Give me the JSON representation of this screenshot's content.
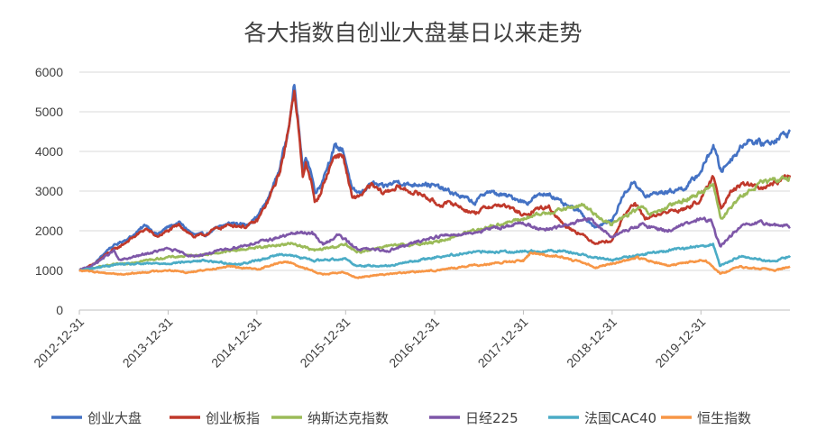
{
  "chart_data": {
    "type": "line",
    "title": "各大指数自创业大盘基日以来走势",
    "xlabel": "",
    "ylabel": "",
    "ylim": [
      0,
      6000
    ],
    "yticks": [
      0,
      1000,
      2000,
      3000,
      4000,
      5000,
      6000
    ],
    "x_range": [
      "2012-12-31",
      "2020-12-31"
    ],
    "xticks": [
      "2012-12-31",
      "2013-12-31",
      "2014-12-31",
      "2015-12-31",
      "2016-12-31",
      "2017-12-31",
      "2018-12-31",
      "2019-12-31"
    ],
    "grid": "horizontal",
    "legend_position": "bottom",
    "series": [
      {
        "name": "创业大盘",
        "color": "#4472C4",
        "points": [
          [
            "2012-12-31",
            1000
          ],
          [
            "2013-03-01",
            1150
          ],
          [
            "2013-05-01",
            1550
          ],
          [
            "2013-06-15",
            1700
          ],
          [
            "2013-08-01",
            1850
          ],
          [
            "2013-10-01",
            2150
          ],
          [
            "2013-11-15",
            1900
          ],
          [
            "2014-01-01",
            2100
          ],
          [
            "2014-02-15",
            2200
          ],
          [
            "2014-04-15",
            1900
          ],
          [
            "2014-06-01",
            1900
          ],
          [
            "2014-07-15",
            2050
          ],
          [
            "2014-09-15",
            2200
          ],
          [
            "2014-11-15",
            2150
          ],
          [
            "2015-01-01",
            2350
          ],
          [
            "2015-02-15",
            2800
          ],
          [
            "2015-03-31",
            3500
          ],
          [
            "2015-05-01",
            4300
          ],
          [
            "2015-06-03",
            5650
          ],
          [
            "2015-06-20",
            4700
          ],
          [
            "2015-07-08",
            3500
          ],
          [
            "2015-07-20",
            3900
          ],
          [
            "2015-08-10",
            3500
          ],
          [
            "2015-08-26",
            3000
          ],
          [
            "2015-09-15",
            3100
          ],
          [
            "2015-10-15",
            3600
          ],
          [
            "2015-11-15",
            4100
          ],
          [
            "2015-12-20",
            4050
          ],
          [
            "2016-01-10",
            3500
          ],
          [
            "2016-01-28",
            3000
          ],
          [
            "2016-03-01",
            2950
          ],
          [
            "2016-04-15",
            3200
          ],
          [
            "2016-06-01",
            3100
          ],
          [
            "2016-08-01",
            3250
          ],
          [
            "2016-09-15",
            3150
          ],
          [
            "2016-11-15",
            3200
          ],
          [
            "2017-01-15",
            3100
          ],
          [
            "2017-03-15",
            2950
          ],
          [
            "2017-05-15",
            2800
          ],
          [
            "2017-06-15",
            2700
          ],
          [
            "2017-08-01",
            3000
          ],
          [
            "2017-10-01",
            2900
          ],
          [
            "2017-11-15",
            2850
          ],
          [
            "2018-01-15",
            2700
          ],
          [
            "2018-02-15",
            2850
          ],
          [
            "2018-04-15",
            2950
          ],
          [
            "2018-06-15",
            2650
          ],
          [
            "2018-08-15",
            2500
          ],
          [
            "2018-10-20",
            2100
          ],
          [
            "2018-12-31",
            2250
          ],
          [
            "2019-02-15",
            2900
          ],
          [
            "2019-04-01",
            3250
          ],
          [
            "2019-05-15",
            2850
          ],
          [
            "2019-07-01",
            2950
          ],
          [
            "2019-09-01",
            3000
          ],
          [
            "2019-11-01",
            3100
          ],
          [
            "2019-12-31",
            3500
          ],
          [
            "2020-02-20",
            4150
          ],
          [
            "2020-03-23",
            3500
          ],
          [
            "2020-05-01",
            3800
          ],
          [
            "2020-07-10",
            4300
          ],
          [
            "2020-09-01",
            4200
          ],
          [
            "2020-10-15",
            4250
          ],
          [
            "2020-12-31",
            4500
          ]
        ]
      },
      {
        "name": "创业板指",
        "color": "#C0392B",
        "points": [
          [
            "2012-12-31",
            1000
          ],
          [
            "2013-03-01",
            1150
          ],
          [
            "2013-05-01",
            1450
          ],
          [
            "2013-06-15",
            1600
          ],
          [
            "2013-08-01",
            1800
          ],
          [
            "2013-10-01",
            2050
          ],
          [
            "2013-11-15",
            1850
          ],
          [
            "2014-01-01",
            2000
          ],
          [
            "2014-02-15",
            2150
          ],
          [
            "2014-04-15",
            1850
          ],
          [
            "2014-06-01",
            1900
          ],
          [
            "2014-07-15",
            2050
          ],
          [
            "2014-09-15",
            2150
          ],
          [
            "2014-11-15",
            2100
          ],
          [
            "2015-01-01",
            2250
          ],
          [
            "2015-02-15",
            2750
          ],
          [
            "2015-03-31",
            3400
          ],
          [
            "2015-05-01",
            4200
          ],
          [
            "2015-06-03",
            5600
          ],
          [
            "2015-06-20",
            4600
          ],
          [
            "2015-07-08",
            3300
          ],
          [
            "2015-07-20",
            3700
          ],
          [
            "2015-08-10",
            3300
          ],
          [
            "2015-08-26",
            2700
          ],
          [
            "2015-09-15",
            2900
          ],
          [
            "2015-10-15",
            3400
          ],
          [
            "2015-11-15",
            3900
          ],
          [
            "2015-12-20",
            3900
          ],
          [
            "2016-01-10",
            3300
          ],
          [
            "2016-01-28",
            2800
          ],
          [
            "2016-03-01",
            2900
          ],
          [
            "2016-04-15",
            3150
          ],
          [
            "2016-06-01",
            2950
          ],
          [
            "2016-08-01",
            3100
          ],
          [
            "2016-09-15",
            3000
          ],
          [
            "2016-11-15",
            2900
          ],
          [
            "2017-01-15",
            2650
          ],
          [
            "2017-03-15",
            2700
          ],
          [
            "2017-05-15",
            2500
          ],
          [
            "2017-06-15",
            2450
          ],
          [
            "2017-08-01",
            2600
          ],
          [
            "2017-10-01",
            2650
          ],
          [
            "2017-11-15",
            2550
          ],
          [
            "2018-01-15",
            2350
          ],
          [
            "2018-02-15",
            2550
          ],
          [
            "2018-04-15",
            2600
          ],
          [
            "2018-06-15",
            2150
          ],
          [
            "2018-08-15",
            1950
          ],
          [
            "2018-10-20",
            1700
          ],
          [
            "2018-12-31",
            1750
          ],
          [
            "2019-02-15",
            2350
          ],
          [
            "2019-04-01",
            2700
          ],
          [
            "2019-05-15",
            2300
          ],
          [
            "2019-07-01",
            2400
          ],
          [
            "2019-09-01",
            2500
          ],
          [
            "2019-11-01",
            2550
          ],
          [
            "2019-12-31",
            2800
          ],
          [
            "2020-02-20",
            3350
          ],
          [
            "2020-03-23",
            2600
          ],
          [
            "2020-05-01",
            3000
          ],
          [
            "2020-07-10",
            3200
          ],
          [
            "2020-09-01",
            3050
          ],
          [
            "2020-10-15",
            3150
          ],
          [
            "2020-12-31",
            3400
          ]
        ]
      },
      {
        "name": "纳斯达克指数",
        "color": "#9BBB59",
        "points": [
          [
            "2012-12-31",
            1000
          ],
          [
            "2013-06-01",
            1150
          ],
          [
            "2013-12-31",
            1330
          ],
          [
            "2014-06-01",
            1400
          ],
          [
            "2014-12-31",
            1580
          ],
          [
            "2015-06-01",
            1680
          ],
          [
            "2015-08-25",
            1500
          ],
          [
            "2015-12-31",
            1650
          ],
          [
            "2016-02-15",
            1450
          ],
          [
            "2016-06-01",
            1600
          ],
          [
            "2016-12-31",
            1700
          ],
          [
            "2017-06-01",
            2000
          ],
          [
            "2017-12-31",
            2300
          ],
          [
            "2018-03-01",
            2400
          ],
          [
            "2018-08-31",
            2650
          ],
          [
            "2018-12-24",
            2150
          ],
          [
            "2019-04-30",
            2600
          ],
          [
            "2019-06-03",
            2400
          ],
          [
            "2019-12-31",
            2950
          ],
          [
            "2020-02-19",
            3200
          ],
          [
            "2020-03-23",
            2300
          ],
          [
            "2020-06-01",
            2800
          ],
          [
            "2020-09-01",
            3200
          ],
          [
            "2020-12-31",
            3350
          ]
        ]
      },
      {
        "name": "日经225",
        "color": "#7E57A8",
        "points": [
          [
            "2012-12-31",
            1000
          ],
          [
            "2013-03-01",
            1150
          ],
          [
            "2013-05-22",
            1500
          ],
          [
            "2013-06-13",
            1250
          ],
          [
            "2013-12-31",
            1550
          ],
          [
            "2014-04-15",
            1350
          ],
          [
            "2014-12-31",
            1700
          ],
          [
            "2015-06-15",
            1950
          ],
          [
            "2015-08-15",
            1950
          ],
          [
            "2015-09-29",
            1650
          ],
          [
            "2015-12-01",
            1900
          ],
          [
            "2016-02-15",
            1550
          ],
          [
            "2016-06-24",
            1500
          ],
          [
            "2016-12-31",
            1850
          ],
          [
            "2017-06-01",
            1950
          ],
          [
            "2017-12-31",
            2200
          ],
          [
            "2018-03-25",
            2000
          ],
          [
            "2018-10-01",
            2300
          ],
          [
            "2018-12-25",
            1850
          ],
          [
            "2019-04-30",
            2150
          ],
          [
            "2019-08-15",
            2000
          ],
          [
            "2019-12-31",
            2300
          ],
          [
            "2020-02-10",
            2250
          ],
          [
            "2020-03-19",
            1600
          ],
          [
            "2020-06-08",
            2100
          ],
          [
            "2020-09-01",
            2200
          ],
          [
            "2020-12-31",
            2100
          ]
        ]
      },
      {
        "name": "法国CAC40",
        "color": "#4BACC6",
        "points": [
          [
            "2012-12-31",
            1000
          ],
          [
            "2013-06-01",
            1150
          ],
          [
            "2013-12-31",
            1180
          ],
          [
            "2014-06-01",
            1250
          ],
          [
            "2014-10-15",
            1150
          ],
          [
            "2014-12-31",
            1250
          ],
          [
            "2015-04-15",
            1420
          ],
          [
            "2015-08-24",
            1250
          ],
          [
            "2015-12-31",
            1300
          ],
          [
            "2016-02-11",
            1120
          ],
          [
            "2016-06-27",
            1120
          ],
          [
            "2016-12-31",
            1330
          ],
          [
            "2017-06-01",
            1460
          ],
          [
            "2017-12-31",
            1480
          ],
          [
            "2018-06-01",
            1500
          ],
          [
            "2018-12-27",
            1260
          ],
          [
            "2019-06-01",
            1430
          ],
          [
            "2019-12-31",
            1620
          ],
          [
            "2020-02-19",
            1660
          ],
          [
            "2020-03-18",
            1100
          ],
          [
            "2020-06-08",
            1360
          ],
          [
            "2020-10-28",
            1220
          ],
          [
            "2020-12-31",
            1370
          ]
        ]
      },
      {
        "name": "恒生指数",
        "color": "#F79646",
        "points": [
          [
            "2012-12-31",
            1000
          ],
          [
            "2013-06-25",
            900
          ],
          [
            "2013-12-31",
            1010
          ],
          [
            "2014-03-20",
            950
          ],
          [
            "2014-09-01",
            1100
          ],
          [
            "2014-12-31",
            1030
          ],
          [
            "2015-04-28",
            1230
          ],
          [
            "2015-09-29",
            900
          ],
          [
            "2015-12-31",
            950
          ],
          [
            "2016-02-12",
            820
          ],
          [
            "2016-06-01",
            900
          ],
          [
            "2016-12-31",
            1000
          ],
          [
            "2017-06-01",
            1120
          ],
          [
            "2017-12-31",
            1250
          ],
          [
            "2018-01-29",
            1440
          ],
          [
            "2018-06-01",
            1350
          ],
          [
            "2018-10-30",
            1080
          ],
          [
            "2019-04-15",
            1320
          ],
          [
            "2019-08-15",
            1120
          ],
          [
            "2019-12-31",
            1250
          ],
          [
            "2020-01-20",
            1250
          ],
          [
            "2020-03-19",
            920
          ],
          [
            "2020-06-08",
            1090
          ],
          [
            "2020-10-30",
            1000
          ],
          [
            "2020-12-31",
            1100
          ]
        ]
      }
    ]
  }
}
